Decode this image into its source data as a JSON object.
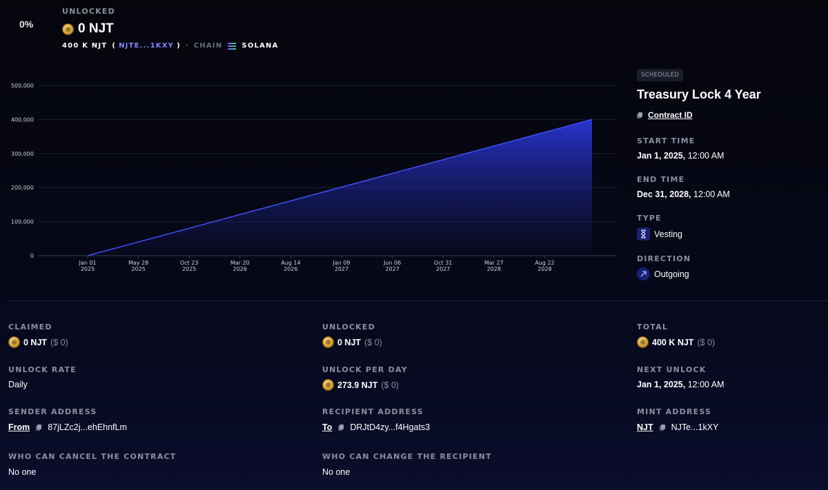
{
  "header": {
    "percent": "0%",
    "unlocked_label": "UNLOCKED",
    "unlocked_amount": "0 NJT",
    "total_short": "400 K NJT",
    "mint_short_link": "NJTE...1KXY",
    "chain_label": "CHAIN",
    "chain_name": "SOLANA",
    "separator": "·"
  },
  "chart_data": {
    "type": "area",
    "x_ticks": [
      {
        "top": "Jan 01",
        "bottom": "2025"
      },
      {
        "top": "May 28",
        "bottom": "2025"
      },
      {
        "top": "Oct 23",
        "bottom": "2025"
      },
      {
        "top": "Mar 20",
        "bottom": "2026"
      },
      {
        "top": "Aug 14",
        "bottom": "2026"
      },
      {
        "top": "Jan 09",
        "bottom": "2027"
      },
      {
        "top": "Jun 06",
        "bottom": "2027"
      },
      {
        "top": "Oct 31",
        "bottom": "2027"
      },
      {
        "top": "Mar 27",
        "bottom": "2028"
      },
      {
        "top": "Aug 22",
        "bottom": "2028"
      }
    ],
    "y_ticks": [
      "0",
      "100,000",
      "200,000",
      "300,000",
      "400,000",
      "500,000"
    ],
    "ylim": [
      0,
      500000
    ],
    "series": [
      {
        "x": [
          "2025-01-01",
          "2028-12-31"
        ],
        "y": [
          0,
          400000
        ]
      }
    ],
    "line_color": "#3d4ef0",
    "grid": true
  },
  "side": {
    "status": "SCHEDULED",
    "title": "Treasury Lock 4 Year",
    "contract_link": "Contract ID",
    "start_label": "START TIME",
    "start_date": "Jan 1, 2025,",
    "start_time": "12:00 AM",
    "end_label": "END TIME",
    "end_date": "Dec 31, 2028,",
    "end_time": "12:00 AM",
    "type_label": "TYPE",
    "type_value": "Vesting",
    "direction_label": "DIRECTION",
    "direction_value": "Outgoing"
  },
  "stats": {
    "claimed_label": "CLAIMED",
    "claimed_amount": "0 NJT",
    "claimed_usd": "($ 0)",
    "unlocked_label": "UNLOCKED",
    "unlocked_amount": "0 NJT",
    "unlocked_usd": "($ 0)",
    "total_label": "TOTAL",
    "total_amount": "400 K NJT",
    "total_usd": "($ 0)",
    "rate_label": "UNLOCK RATE",
    "rate_value": "Daily",
    "per_day_label": "UNLOCK PER DAY",
    "per_day_amount": "273.9 NJT",
    "per_day_usd": "($ 0)",
    "next_label": "NEXT UNLOCK",
    "next_date": "Jan 1, 2025,",
    "next_time": "12:00 AM",
    "sender_label": "SENDER ADDRESS",
    "sender_link": "From",
    "sender_address": "87jLZc2j...ehEhnfLm",
    "recipient_label": "RECIPIENT ADDRESS",
    "recipient_link": "To",
    "recipient_address": "DRJtD4zy...f4Hgats3",
    "mint_label": "MINT ADDRESS",
    "mint_link": "NJT",
    "mint_address": "NJTe...1kXY",
    "cancel_label": "WHO CAN CANCEL THE CONTRACT",
    "cancel_value": "No one",
    "change_label": "WHO CAN CHANGE THE RECIPIENT",
    "change_value": "No one"
  }
}
